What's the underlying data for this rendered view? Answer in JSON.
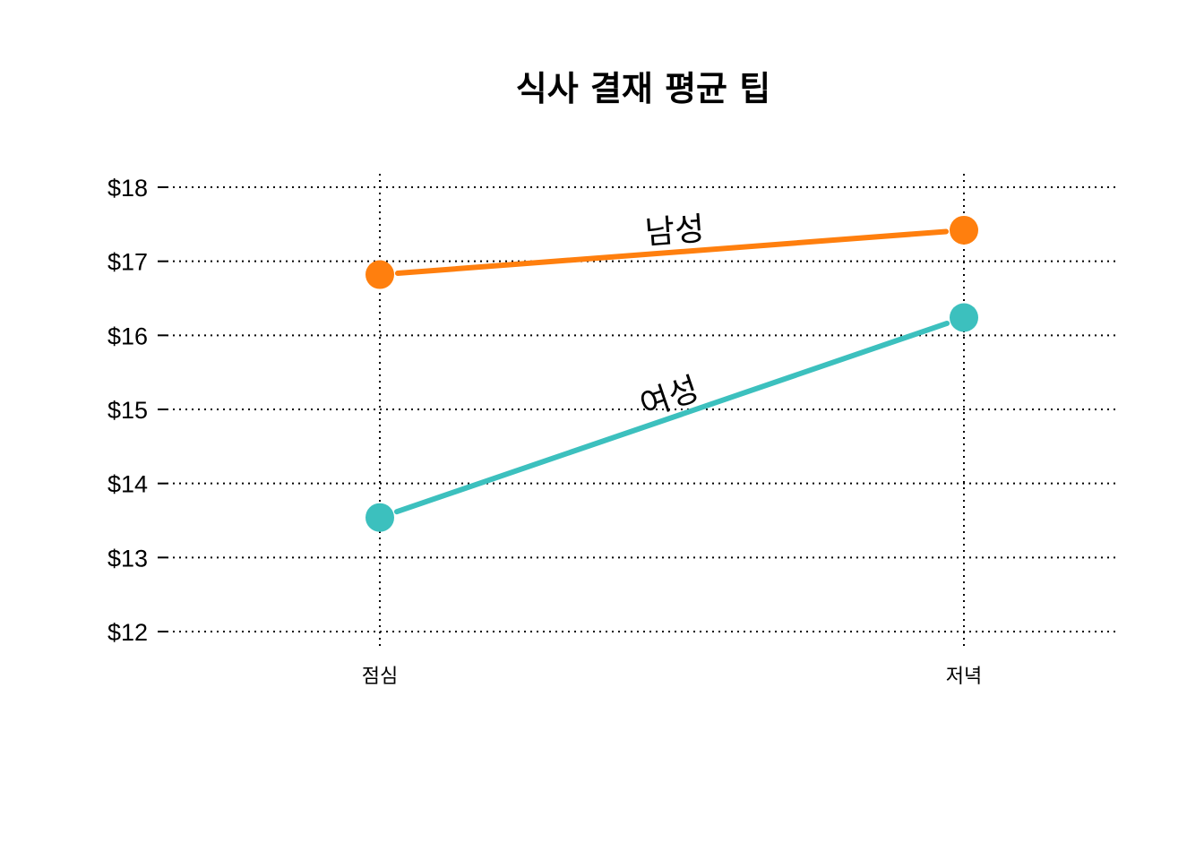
{
  "chart_data": {
    "type": "line",
    "title": "식사 결재 평균 팁",
    "xlabel": "",
    "ylabel": "",
    "categories": [
      "점심",
      "저녁"
    ],
    "ylim": [
      12,
      18
    ],
    "yticks": [
      12,
      13,
      14,
      15,
      16,
      17,
      18
    ],
    "ytick_labels": [
      "$12",
      "$13",
      "$14",
      "$15",
      "$16",
      "$17",
      "$18"
    ],
    "grid": true,
    "legend": "inline-labels",
    "series": [
      {
        "name": "남성",
        "values": [
          16.82,
          17.42
        ],
        "color": "#FF7F0E"
      },
      {
        "name": "여성",
        "values": [
          13.54,
          16.24
        ],
        "color": "#3CC0BE"
      }
    ]
  }
}
